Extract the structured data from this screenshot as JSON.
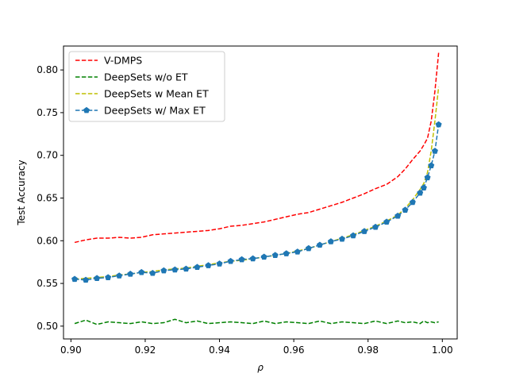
{
  "chart_data": {
    "type": "line",
    "title": "",
    "xlabel": "ρ",
    "ylabel": "Test Accuracy",
    "xlim": [
      0.898,
      1.004
    ],
    "ylim": [
      0.485,
      0.828
    ],
    "x_ticks": [
      "0.90",
      "0.92",
      "0.94",
      "0.96",
      "0.98",
      "1.00"
    ],
    "x_tick_values": [
      0.9,
      0.92,
      0.94,
      0.96,
      0.98,
      1.0
    ],
    "y_ticks": [
      "0.50",
      "0.55",
      "0.60",
      "0.65",
      "0.70",
      "0.75",
      "0.80"
    ],
    "y_tick_values": [
      0.5,
      0.55,
      0.6,
      0.65,
      0.7,
      0.75,
      0.8
    ],
    "grid": false,
    "legend_position": "top-left",
    "x": [
      0.901,
      0.904,
      0.907,
      0.91,
      0.913,
      0.916,
      0.919,
      0.922,
      0.925,
      0.928,
      0.931,
      0.934,
      0.937,
      0.94,
      0.943,
      0.946,
      0.949,
      0.952,
      0.955,
      0.958,
      0.961,
      0.964,
      0.967,
      0.97,
      0.973,
      0.976,
      0.979,
      0.982,
      0.985,
      0.988,
      0.99,
      0.992,
      0.994,
      0.995,
      0.996,
      0.997,
      0.998,
      0.999
    ],
    "series": [
      {
        "name": "V-DMPS",
        "color": "#ff0000",
        "style": "dashed",
        "marker": "none",
        "values": [
          0.598,
          0.601,
          0.603,
          0.603,
          0.604,
          0.603,
          0.604,
          0.607,
          0.608,
          0.609,
          0.61,
          0.611,
          0.612,
          0.614,
          0.617,
          0.618,
          0.62,
          0.622,
          0.625,
          0.628,
          0.631,
          0.633,
          0.637,
          0.641,
          0.645,
          0.65,
          0.655,
          0.661,
          0.666,
          0.675,
          0.684,
          0.695,
          0.705,
          0.712,
          0.72,
          0.74,
          0.775,
          0.82
        ]
      },
      {
        "name": "DeepSets w/o ET",
        "color": "#008000",
        "style": "dashed",
        "marker": "none",
        "values": [
          0.503,
          0.507,
          0.502,
          0.505,
          0.504,
          0.503,
          0.505,
          0.503,
          0.504,
          0.508,
          0.504,
          0.506,
          0.503,
          0.504,
          0.505,
          0.504,
          0.503,
          0.506,
          0.503,
          0.505,
          0.504,
          0.503,
          0.506,
          0.503,
          0.505,
          0.504,
          0.503,
          0.506,
          0.503,
          0.506,
          0.504,
          0.505,
          0.503,
          0.506,
          0.504,
          0.505,
          0.504,
          0.505
        ]
      },
      {
        "name": "DeepSets w Mean ET",
        "color": "#bfbf00",
        "style": "dashed",
        "marker": "none",
        "values": [
          0.555,
          0.556,
          0.557,
          0.558,
          0.56,
          0.561,
          0.563,
          0.564,
          0.566,
          0.567,
          0.568,
          0.57,
          0.572,
          0.574,
          0.576,
          0.577,
          0.579,
          0.581,
          0.583,
          0.585,
          0.588,
          0.591,
          0.595,
          0.599,
          0.603,
          0.607,
          0.612,
          0.617,
          0.623,
          0.63,
          0.638,
          0.648,
          0.66,
          0.667,
          0.68,
          0.705,
          0.74,
          0.78
        ]
      },
      {
        "name": "DeepSets w/ Max ET",
        "color": "#1f77b4",
        "style": "dashed",
        "marker": "pentagon",
        "values": [
          0.555,
          0.554,
          0.556,
          0.557,
          0.559,
          0.561,
          0.563,
          0.562,
          0.565,
          0.566,
          0.567,
          0.569,
          0.571,
          0.573,
          0.576,
          0.578,
          0.579,
          0.581,
          0.583,
          0.585,
          0.587,
          0.591,
          0.595,
          0.599,
          0.602,
          0.606,
          0.611,
          0.616,
          0.622,
          0.629,
          0.636,
          0.645,
          0.656,
          0.662,
          0.674,
          0.688,
          0.705,
          0.736
        ]
      }
    ]
  }
}
